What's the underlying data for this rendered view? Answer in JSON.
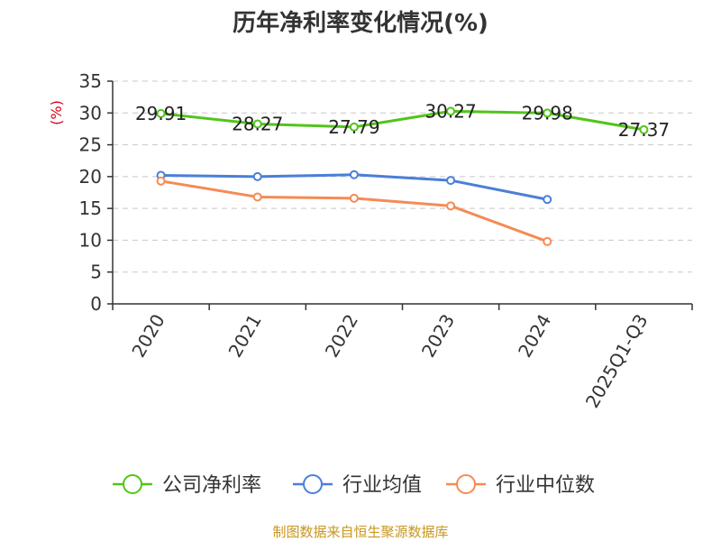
{
  "chart_data": {
    "type": "line",
    "title": "历年净利率变化情况(%)",
    "ylabel": "(%)",
    "xlabel": "",
    "categories": [
      "2020",
      "2021",
      "2022",
      "2023",
      "2024",
      "2025Q1-Q3"
    ],
    "ylim": [
      0,
      35
    ],
    "yticks": [
      0,
      5,
      10,
      15,
      20,
      25,
      30,
      35
    ],
    "grid": true,
    "legend_position": "bottom",
    "series": [
      {
        "name": "公司净利率",
        "color": "#52c41a",
        "values": [
          29.91,
          28.27,
          27.79,
          30.27,
          29.98,
          27.37
        ],
        "show_labels": true
      },
      {
        "name": "行业均值",
        "color": "#4a7fd8",
        "values": [
          20.2,
          20.0,
          20.3,
          19.4,
          16.4,
          null
        ],
        "show_labels": false
      },
      {
        "name": "行业中位数",
        "color": "#f58b55",
        "values": [
          19.3,
          16.8,
          16.6,
          15.4,
          9.8,
          null
        ],
        "show_labels": false
      }
    ]
  },
  "source_text": "制图数据来自恒生聚源数据库"
}
